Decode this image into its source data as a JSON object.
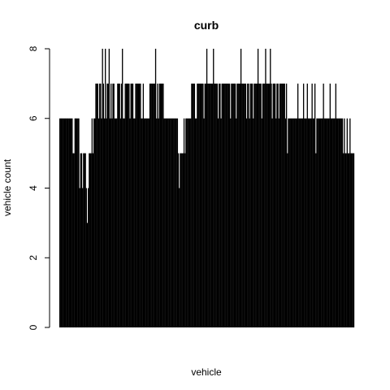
{
  "chart_data": {
    "type": "bar",
    "title": "curb",
    "xlabel": "vehicle",
    "ylabel": "vehicle count",
    "ylim": [
      0,
      8
    ],
    "yticks": [
      "0",
      "2",
      "4",
      "6",
      "8"
    ],
    "grid": false,
    "bar_color": "#000000",
    "categories_visible": false,
    "values": [
      6,
      6,
      6,
      6,
      6,
      6,
      6,
      6,
      6,
      6,
      6,
      6,
      6,
      6,
      5,
      5,
      6,
      6,
      6,
      6,
      6,
      4,
      5,
      5,
      4,
      5,
      5,
      5,
      4,
      3,
      4,
      5,
      5,
      5,
      6,
      5,
      6,
      6,
      7,
      7,
      7,
      6,
      7,
      7,
      6,
      8,
      7,
      6,
      8,
      6,
      7,
      7,
      8,
      6,
      7,
      6,
      7,
      7,
      6,
      6,
      6,
      7,
      7,
      7,
      6,
      7,
      8,
      6,
      6,
      7,
      7,
      7,
      7,
      7,
      6,
      7,
      7,
      7,
      6,
      6,
      7,
      7,
      7,
      7,
      7,
      7,
      6,
      6,
      7,
      6,
      6,
      6,
      6,
      6,
      6,
      7,
      7,
      7,
      7,
      7,
      7,
      8,
      6,
      7,
      6,
      7,
      7,
      7,
      7,
      7,
      6,
      6,
      6,
      6,
      6,
      6,
      6,
      6,
      6,
      6,
      6,
      6,
      6,
      6,
      6,
      5,
      4,
      5,
      5,
      5,
      5,
      6,
      5,
      6,
      6,
      6,
      6,
      6,
      6,
      7,
      7,
      7,
      7,
      6,
      6,
      7,
      7,
      7,
      7,
      7,
      7,
      7,
      6,
      7,
      7,
      8,
      7,
      7,
      7,
      7,
      7,
      7,
      8,
      7,
      7,
      7,
      7,
      6,
      7,
      7,
      6,
      7,
      7,
      7,
      7,
      7,
      7,
      7,
      7,
      7,
      6,
      7,
      7,
      7,
      7,
      7,
      6,
      7,
      7,
      7,
      7,
      8,
      7,
      7,
      7,
      7,
      7,
      6,
      7,
      7,
      6,
      7,
      7,
      7,
      6,
      7,
      7,
      7,
      7,
      8,
      7,
      7,
      7,
      6,
      7,
      7,
      7,
      8,
      7,
      7,
      7,
      7,
      8,
      7,
      6,
      7,
      7,
      7,
      6,
      7,
      7,
      6,
      7,
      7,
      7,
      7,
      7,
      7,
      6,
      7,
      5,
      6,
      6,
      6,
      6,
      6,
      6,
      6,
      6,
      6,
      6,
      7,
      6,
      6,
      6,
      6,
      6,
      7,
      6,
      6,
      6,
      7,
      6,
      6,
      6,
      6,
      7,
      6,
      6,
      7,
      5,
      6,
      6,
      6,
      6,
      6,
      6,
      6,
      7,
      6,
      6,
      6,
      6,
      6,
      6,
      7,
      6,
      6,
      6,
      6,
      6,
      7,
      6,
      6,
      6,
      6,
      6,
      6,
      6,
      5,
      6,
      5,
      5,
      6,
      5,
      5,
      6,
      5,
      5,
      5,
      5
    ]
  }
}
